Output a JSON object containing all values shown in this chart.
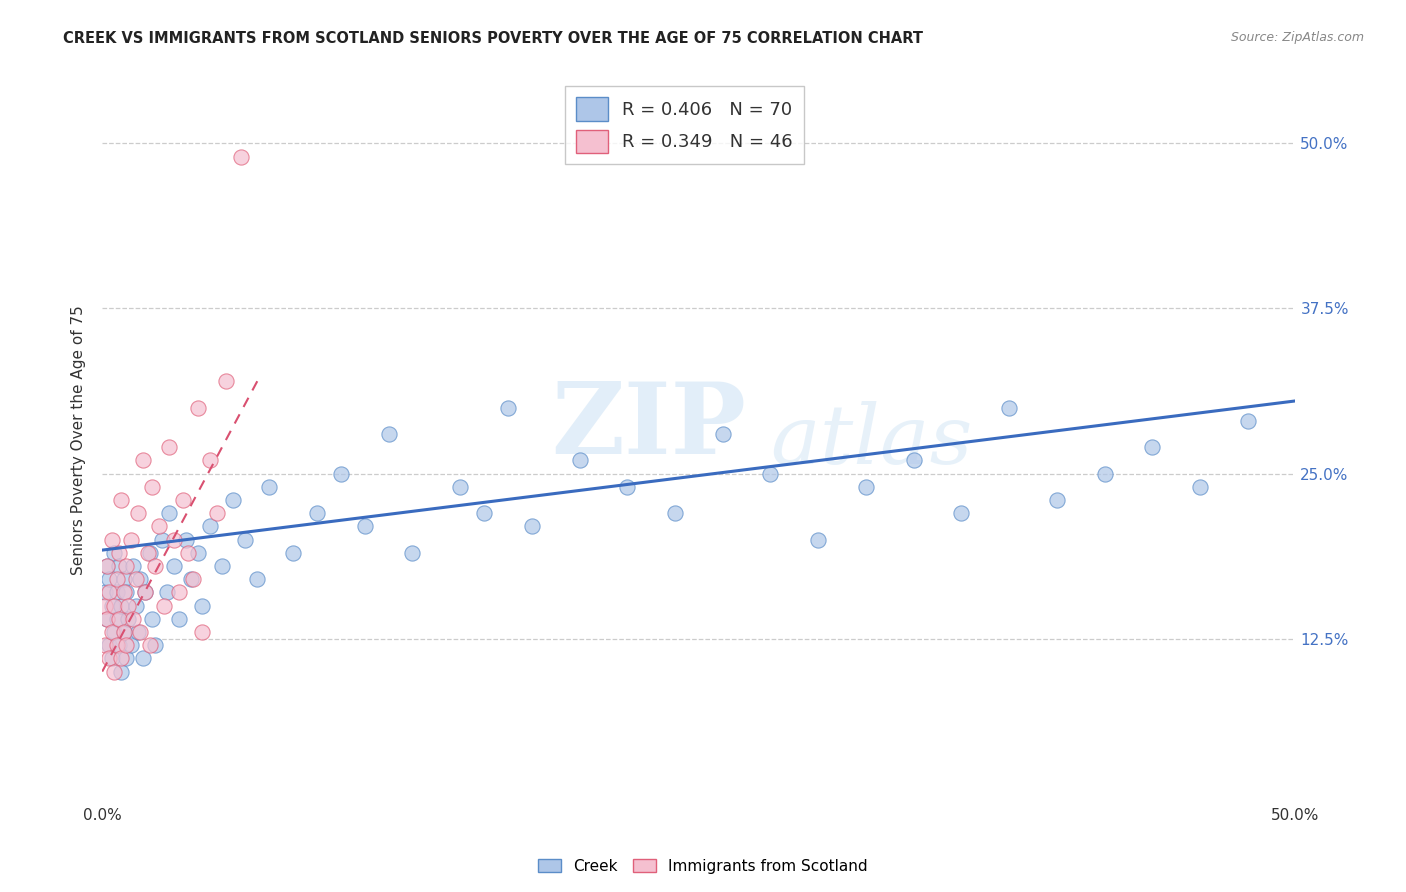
{
  "title": "CREEK VS IMMIGRANTS FROM SCOTLAND SENIORS POVERTY OVER THE AGE OF 75 CORRELATION CHART",
  "source": "Source: ZipAtlas.com",
  "ylabel": "Seniors Poverty Over the Age of 75",
  "xlim": [
    0.0,
    0.5
  ],
  "ylim": [
    0.0,
    0.55
  ],
  "creek_R": 0.406,
  "creek_N": 70,
  "scotland_R": 0.349,
  "scotland_N": 46,
  "creek_color": "#aec6e8",
  "creek_edge_color": "#5b8dc8",
  "creek_line_color": "#3a6bbf",
  "scotland_color": "#f5c0d0",
  "scotland_edge_color": "#e0607a",
  "scotland_line_color": "#d95070",
  "watermark_zip": "ZIP",
  "watermark_atlas": "atlas",
  "background_color": "#ffffff",
  "grid_color": "#cccccc",
  "tick_color": "#4472c4",
  "creek_scatter_x": [
    0.001,
    0.002,
    0.002,
    0.003,
    0.003,
    0.004,
    0.004,
    0.005,
    0.005,
    0.006,
    0.006,
    0.007,
    0.007,
    0.008,
    0.008,
    0.009,
    0.009,
    0.01,
    0.01,
    0.011,
    0.012,
    0.013,
    0.014,
    0.015,
    0.016,
    0.017,
    0.018,
    0.02,
    0.021,
    0.022,
    0.025,
    0.027,
    0.028,
    0.03,
    0.032,
    0.035,
    0.037,
    0.04,
    0.042,
    0.045,
    0.05,
    0.055,
    0.06,
    0.065,
    0.07,
    0.08,
    0.09,
    0.1,
    0.11,
    0.12,
    0.13,
    0.15,
    0.16,
    0.17,
    0.18,
    0.2,
    0.22,
    0.24,
    0.26,
    0.28,
    0.3,
    0.32,
    0.34,
    0.36,
    0.38,
    0.4,
    0.42,
    0.44,
    0.46,
    0.48
  ],
  "creek_scatter_y": [
    0.16,
    0.14,
    0.18,
    0.12,
    0.17,
    0.15,
    0.11,
    0.13,
    0.19,
    0.14,
    0.16,
    0.12,
    0.18,
    0.1,
    0.15,
    0.13,
    0.17,
    0.11,
    0.16,
    0.14,
    0.12,
    0.18,
    0.15,
    0.13,
    0.17,
    0.11,
    0.16,
    0.19,
    0.14,
    0.12,
    0.2,
    0.16,
    0.22,
    0.18,
    0.14,
    0.2,
    0.17,
    0.19,
    0.15,
    0.21,
    0.18,
    0.23,
    0.2,
    0.17,
    0.24,
    0.19,
    0.22,
    0.25,
    0.21,
    0.28,
    0.19,
    0.24,
    0.22,
    0.3,
    0.21,
    0.26,
    0.24,
    0.22,
    0.28,
    0.25,
    0.2,
    0.24,
    0.26,
    0.22,
    0.3,
    0.23,
    0.25,
    0.27,
    0.24,
    0.29
  ],
  "scotland_scatter_x": [
    0.001,
    0.001,
    0.002,
    0.002,
    0.003,
    0.003,
    0.004,
    0.004,
    0.005,
    0.005,
    0.006,
    0.006,
    0.007,
    0.007,
    0.008,
    0.008,
    0.009,
    0.009,
    0.01,
    0.01,
    0.011,
    0.012,
    0.013,
    0.014,
    0.015,
    0.016,
    0.017,
    0.018,
    0.019,
    0.02,
    0.021,
    0.022,
    0.024,
    0.026,
    0.028,
    0.03,
    0.032,
    0.034,
    0.036,
    0.038,
    0.04,
    0.042,
    0.045,
    0.048,
    0.052,
    0.058
  ],
  "scotland_scatter_y": [
    0.12,
    0.15,
    0.14,
    0.18,
    0.11,
    0.16,
    0.13,
    0.2,
    0.15,
    0.1,
    0.17,
    0.12,
    0.19,
    0.14,
    0.11,
    0.23,
    0.16,
    0.13,
    0.18,
    0.12,
    0.15,
    0.2,
    0.14,
    0.17,
    0.22,
    0.13,
    0.26,
    0.16,
    0.19,
    0.12,
    0.24,
    0.18,
    0.21,
    0.15,
    0.27,
    0.2,
    0.16,
    0.23,
    0.19,
    0.17,
    0.3,
    0.13,
    0.26,
    0.22,
    0.32,
    0.49
  ],
  "creek_line_x0": 0.0,
  "creek_line_y0": 0.192,
  "creek_line_x1": 0.5,
  "creek_line_y1": 0.305,
  "scotland_line_x0": 0.0,
  "scotland_line_y0": 0.1,
  "scotland_line_x1": 0.065,
  "scotland_line_y1": 0.32
}
